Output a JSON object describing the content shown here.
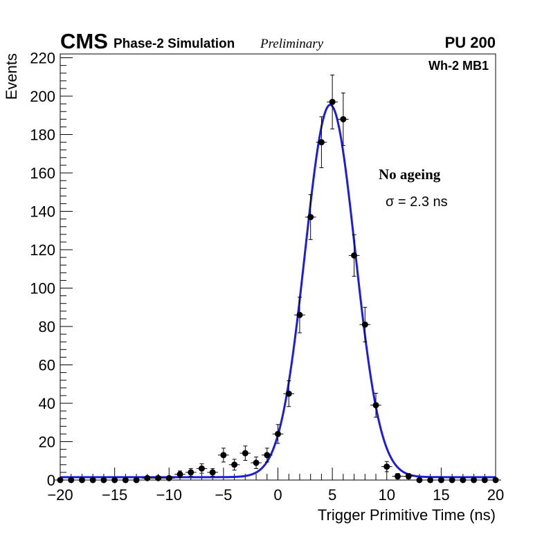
{
  "chart_data": {
    "type": "scatter",
    "experiment_label": "CMS",
    "simulation_label": "Phase-2 Simulation",
    "status_label": "Preliminary",
    "pileup_label": "PU 200",
    "chamber_label": "Wh-2 MB1",
    "condition_label": "No ageing",
    "sigma_label": "σ = 2.3 ns",
    "xlabel": "Trigger Primitive Time (ns)",
    "ylabel": "Events",
    "xlim": [
      -20,
      20
    ],
    "ylim": [
      0,
      222
    ],
    "x_ticks": [
      -20,
      -15,
      -10,
      -5,
      0,
      5,
      10,
      15,
      20
    ],
    "x_tick_labels": [
      "−20",
      "−15",
      "−10",
      "−5",
      "0",
      "5",
      "10",
      "15",
      "20"
    ],
    "y_ticks": [
      0,
      20,
      40,
      60,
      80,
      100,
      120,
      140,
      160,
      180,
      200,
      220
    ],
    "y_tick_labels": [
      "0",
      "20",
      "40",
      "60",
      "80",
      "100",
      "120",
      "140",
      "160",
      "180",
      "200",
      "220"
    ],
    "bin_width": 1,
    "series": [
      {
        "name": "data",
        "x": [
          -20,
          -19,
          -18,
          -17,
          -16,
          -15,
          -14,
          -13,
          -12,
          -11,
          -10,
          -9,
          -8,
          -7,
          -6,
          -5,
          -4,
          -3,
          -2,
          -1,
          0,
          1,
          2,
          3,
          4,
          5,
          6,
          7,
          8,
          9,
          10,
          11,
          12,
          13,
          14,
          15,
          16,
          17,
          18,
          19,
          20
        ],
        "y": [
          0,
          0,
          0,
          0,
          0,
          0,
          0,
          0,
          1,
          1,
          1,
          3,
          4,
          6,
          4,
          13,
          8,
          14,
          9,
          13,
          24,
          45,
          86,
          137,
          176,
          197,
          188,
          117,
          81,
          39,
          7,
          2,
          2,
          0,
          0,
          0,
          0,
          0,
          0,
          0,
          0
        ]
      },
      {
        "name": "gaussian fit",
        "fit_amplitude": 194,
        "fit_mean": 4.8,
        "fit_sigma": 2.3,
        "fit_baseline": 1.5
      }
    ],
    "line_color": "#1c1cde"
  }
}
